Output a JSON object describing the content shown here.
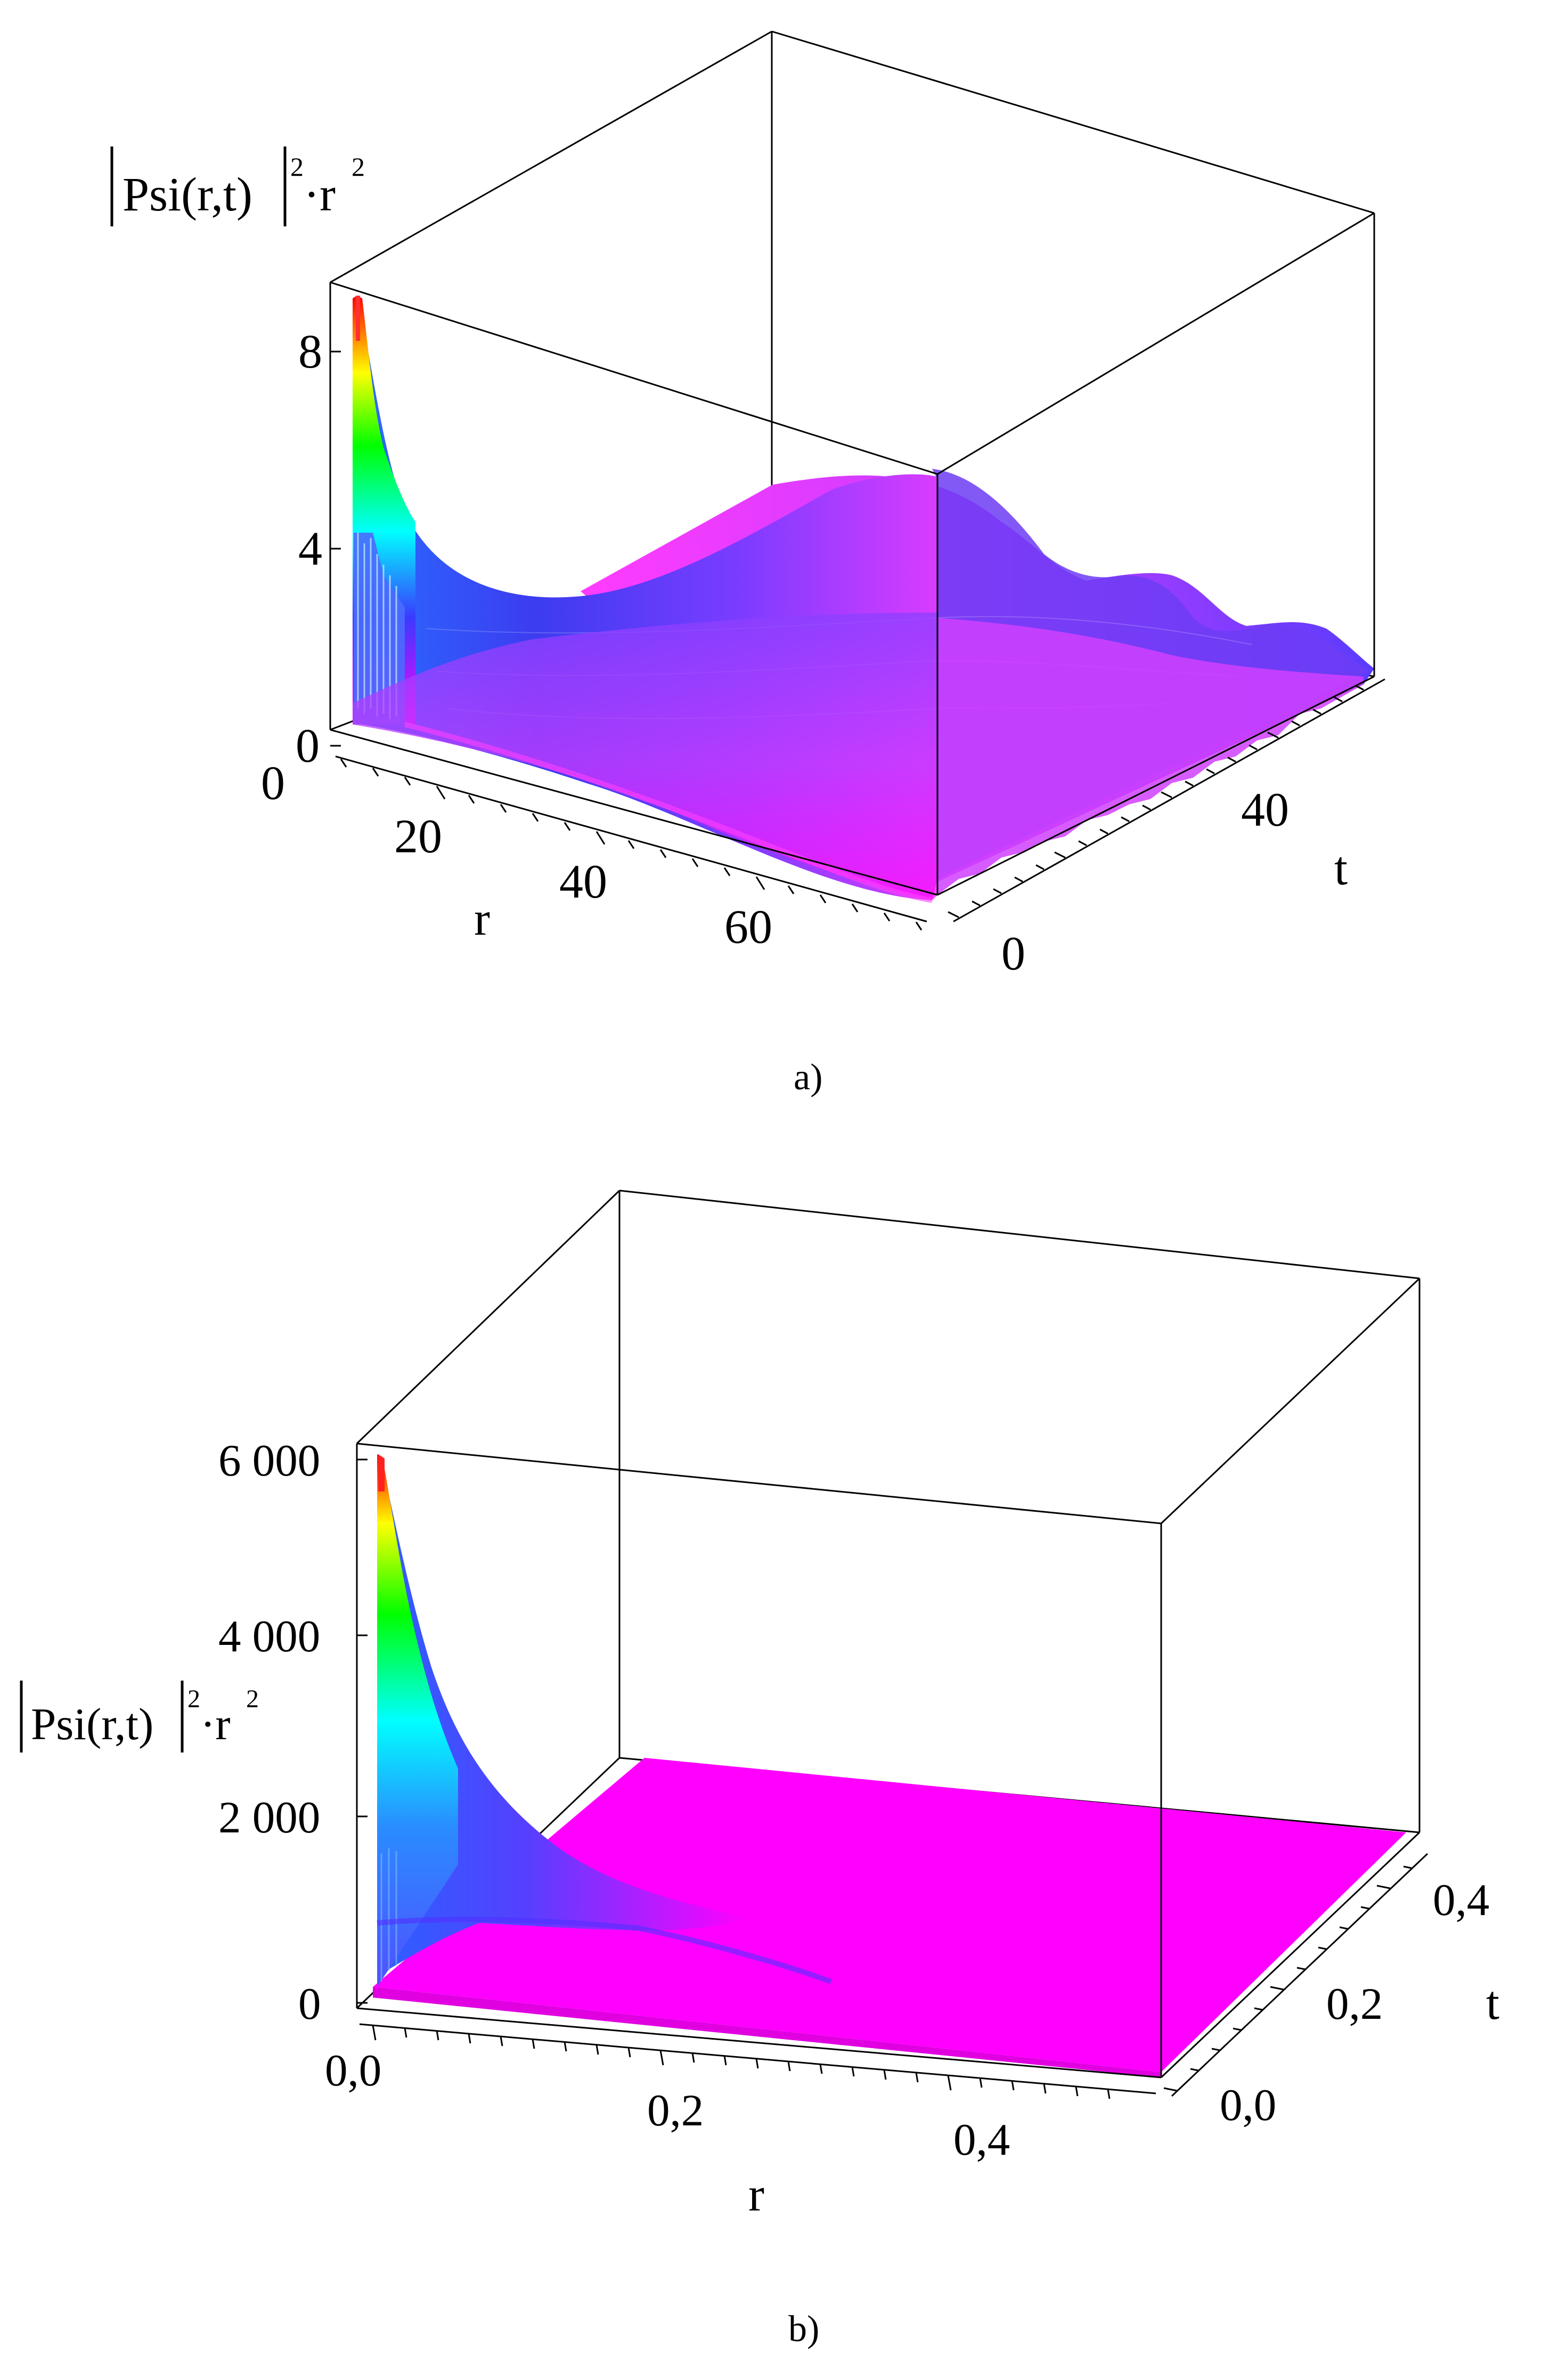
{
  "chart_data": [
    {
      "type": "surface3d",
      "caption": "a)",
      "zlabel": "|Psi(r,t)|²·r²",
      "xlabel": "r",
      "ylabel": "t",
      "x_ticks": [
        "20",
        "40",
        "60"
      ],
      "x_ticks_values": [
        20,
        40,
        60
      ],
      "y_ticks": [
        "0",
        "40"
      ],
      "y_ticks_values": [
        0,
        40
      ],
      "z_ticks": [
        "0",
        "4",
        "8"
      ],
      "z_ticks_values": [
        0,
        4,
        8
      ],
      "corner_zero": "0",
      "xlim": [
        0,
        72
      ],
      "ylim": [
        0,
        65
      ],
      "zlim": [
        0,
        9
      ],
      "peak": {
        "r": 1,
        "t": 0,
        "value": 9
      },
      "colormap": [
        "#ff00ff",
        "#0000ff",
        "#00ffff",
        "#00ff00",
        "#ffff00",
        "#ff0000"
      ]
    },
    {
      "type": "surface3d",
      "caption": "b)",
      "zlabel": "|Psi(r,t)|²·r²",
      "xlabel": "r",
      "ylabel": "t",
      "x_ticks": [
        "0,0",
        "0,2",
        "0,4"
      ],
      "x_ticks_values": [
        0.0,
        0.2,
        0.4
      ],
      "y_ticks": [
        "0,0",
        "0,2",
        "0,4"
      ],
      "y_ticks_values": [
        0.0,
        0.2,
        0.4
      ],
      "z_ticks": [
        "0",
        "2 000",
        "4 000",
        "6 000"
      ],
      "z_ticks_values": [
        0,
        2000,
        4000,
        6000
      ],
      "xlim": [
        0,
        0.5
      ],
      "ylim": [
        0,
        0.5
      ],
      "zlim": [
        0,
        6000
      ],
      "peak": {
        "r": 0,
        "t": 0,
        "value": 6000
      },
      "colormap": [
        "#ff00ff",
        "#0000ff",
        "#00ffff",
        "#00ff00",
        "#ffff00",
        "#ff0000"
      ]
    }
  ]
}
